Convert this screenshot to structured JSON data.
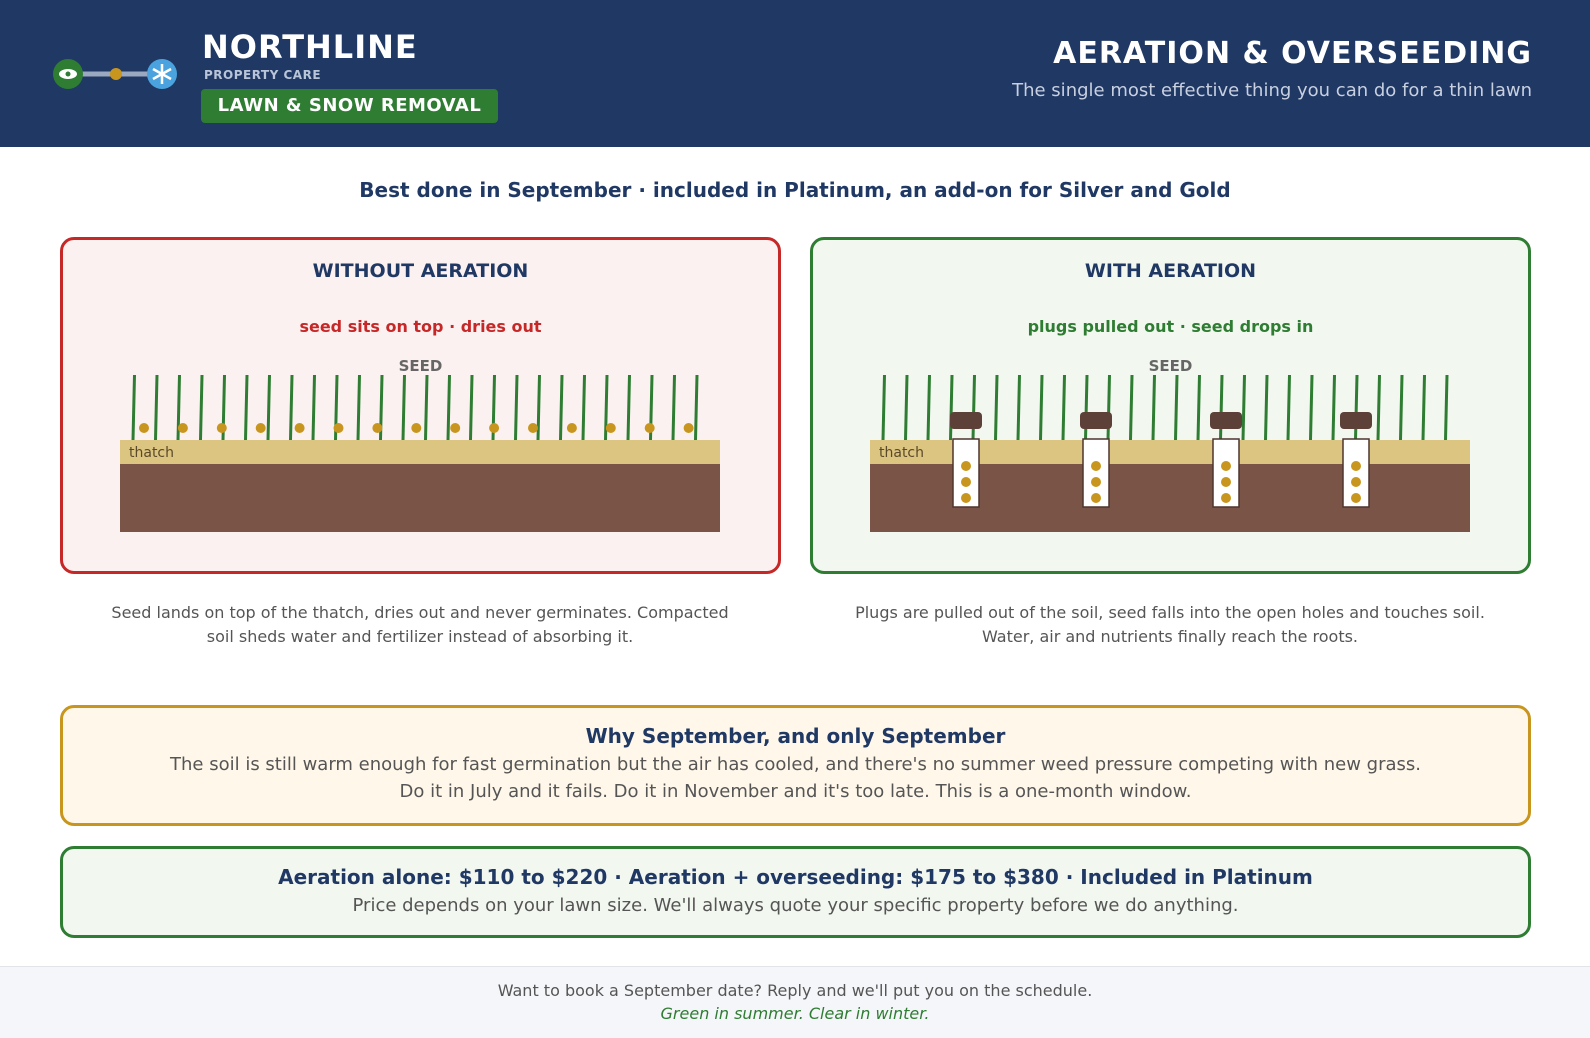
{
  "header": {
    "brand": "NORTHLINE",
    "tagline": "PROPERTY CARE",
    "badge": "LAWN & SNOW REMOVAL",
    "title": "AERATION & OVERSEEDING",
    "subtitle": "The single most effective thing you can do for a thin lawn"
  },
  "intro": "Best done in September · included in Platinum, an add-on for Silver and Gold",
  "panels": [
    {
      "title": "WITHOUT AERATION",
      "caption": "seed sits on top · dries out",
      "seed_label": "SEED",
      "thatch_label": "thatch",
      "description": "Seed lands on top of the thatch, dries out and never germinates. Compacted soil sheds water and fertilizer instead of absorbing it."
    },
    {
      "title": "WITH AERATION",
      "caption": "plugs pulled out · seed drops in",
      "seed_label": "SEED",
      "thatch_label": "thatch",
      "description": "Plugs are pulled out of the soil, seed falls into the open holes and touches soil. Water, air and nutrients finally reach the roots."
    }
  ],
  "why": {
    "title": "Why September, and only September",
    "lines": [
      "The soil is still warm enough for fast germination but the air has cooled, and there's no summer weed pressure competing with new grass.",
      "Do it in July and it fails. Do it in November and it's too late. This is a one-month window."
    ]
  },
  "price": {
    "title": "Aeration alone: $110 to $220 · Aeration + overseeding: $175 to $380 · Included in Platinum",
    "text": "Price depends on your lawn size. We'll always quote your specific property before we do anything."
  },
  "footer": {
    "text": "Want to book a September date? Reply and we'll put you on the schedule.",
    "slogan": "Green in summer. Clear in winter."
  }
}
